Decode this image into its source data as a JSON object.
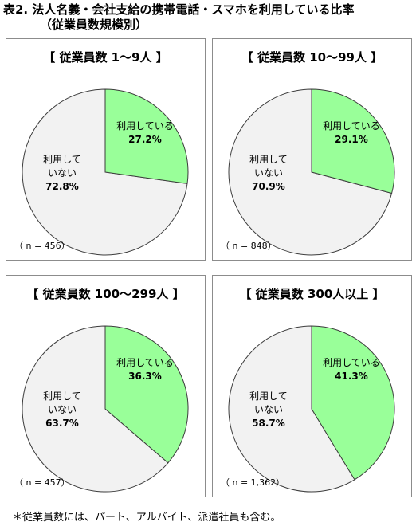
{
  "title": {
    "line1": "表2. 法人名義・会社支給の携帯電話・スマホを利用している比率",
    "line2": "（従業員数規模別）"
  },
  "colors": {
    "using": "#99ff99",
    "not_using": "#f2f2f2",
    "slice_border": "#3c3c3c"
  },
  "chart_data": [
    {
      "type": "pie",
      "title": "【 従業員数 1〜9人 】",
      "categories": [
        "利用している",
        "利用していない"
      ],
      "values": [
        27.2,
        72.8
      ],
      "value_labels": [
        "27.2%",
        "72.8%"
      ],
      "n": "（ n = 456）"
    },
    {
      "type": "pie",
      "title": "【 従業員数 10〜99人 】",
      "categories": [
        "利用している",
        "利用していない"
      ],
      "values": [
        29.1,
        70.9
      ],
      "value_labels": [
        "29.1%",
        "70.9%"
      ],
      "n": "（ n = 848）"
    },
    {
      "type": "pie",
      "title": "【 従業員数 100〜299人 】",
      "categories": [
        "利用している",
        "利用していない"
      ],
      "values": [
        36.3,
        63.7
      ],
      "value_labels": [
        "36.3%",
        "63.7%"
      ],
      "n": "（ n = 457）"
    },
    {
      "type": "pie",
      "title": "【 従業員数 300人以上 】",
      "categories": [
        "利用している",
        "利用していない"
      ],
      "values": [
        41.3,
        58.7
      ],
      "value_labels": [
        "41.3%",
        "58.7%"
      ],
      "n": "（ n = 1,362）"
    }
  ],
  "footnote": "＊従業員数には、パート、アルバイト、派遣社員も含む。"
}
